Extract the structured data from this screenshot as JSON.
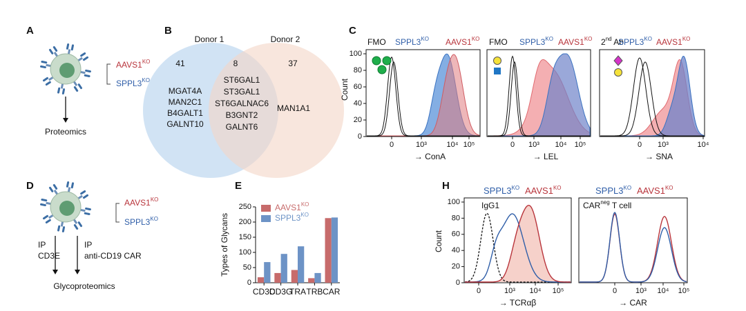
{
  "panel_a": {
    "letter": "A",
    "knockouts": [
      {
        "text": "AAVS1",
        "sup": "KO",
        "color": "#b8343b"
      },
      {
        "text": "SPPL3",
        "sup": "KO",
        "color": "#2f5ea8"
      }
    ],
    "readout": "Proteomics"
  },
  "panel_b": {
    "letter": "B",
    "donors": [
      "Donor 1",
      "Donor 2"
    ],
    "counts": [
      41,
      8,
      37
    ],
    "donor1_only": [
      "MGAT4A",
      "MAN2C1",
      "B4GALT1",
      "GALNT10"
    ],
    "shared": [
      "ST6GAL1",
      "ST3GAL1",
      "ST6GALNAC6",
      "B3GNT2",
      "GALNT6"
    ],
    "donor2_only": [
      "MAN1A1"
    ]
  },
  "panel_c": {
    "letter": "C",
    "ylabel": "Count",
    "yticks": [
      0,
      20,
      40,
      60,
      80,
      100
    ],
    "plots": [
      {
        "headers": [
          {
            "text": "FMO",
            "color": "#111"
          },
          {
            "text": "SPPL3",
            "sup": "KO",
            "color": "#2f5ea8"
          },
          {
            "text": "AAVS1",
            "sup": "KO",
            "color": "#b8343b"
          }
        ],
        "xticks": [
          "0",
          "10³",
          "10⁴",
          "10⁵"
        ],
        "xlabel": "→ ConA"
      },
      {
        "headers": [
          {
            "text": "FMO",
            "color": "#111"
          },
          {
            "text": "SPPL3",
            "sup": "KO",
            "color": "#2f5ea8"
          },
          {
            "text": "AAVS1",
            "sup": "KO",
            "color": "#b8343b"
          }
        ],
        "xticks": [
          "0",
          "10³",
          "10⁴",
          "10⁵"
        ],
        "xlabel": "→ LEL"
      },
      {
        "headers": [
          {
            "text": "2",
            "sup": "nd",
            "post": " Ab",
            "color": "#111"
          },
          {
            "text": "SPPL3",
            "sup": "KO",
            "color": "#2f5ea8"
          },
          {
            "text": "AAVS1",
            "sup": "KO",
            "color": "#b8343b"
          }
        ],
        "xticks": [
          "0",
          "10³",
          "10⁴"
        ],
        "xlabel": "→ SNA"
      }
    ]
  },
  "panel_d": {
    "letter": "D",
    "knockouts": [
      {
        "text": "AAVS1",
        "sup": "KO",
        "color": "#b8343b"
      },
      {
        "text": "SPPL3",
        "sup": "KO",
        "color": "#2f5ea8"
      }
    ],
    "ip": [
      {
        "label": "IP",
        "target": "CD3E"
      },
      {
        "label": "IP",
        "target": "anti-CD19 CAR"
      }
    ],
    "readout": "Glycoproteomics"
  },
  "chart_data": {
    "type": "bar",
    "letter": "E",
    "ylabel": "Types of Glycans",
    "categories": [
      "CD3D",
      "CD3G",
      "TRA",
      "TRB",
      "CAR"
    ],
    "series": [
      {
        "name": "AAVS1",
        "name_sup": "KO",
        "color": "#c76b6b",
        "values": [
          18,
          32,
          42,
          15,
          213
        ]
      },
      {
        "name": "SPPL3",
        "name_sup": "KO",
        "color": "#6d93c6",
        "values": [
          68,
          95,
          120,
          32,
          215
        ]
      }
    ],
    "ylim": [
      0,
      250
    ],
    "yticks": [
      0,
      50,
      100,
      150,
      200,
      250
    ],
    "legend": "upper-left"
  },
  "panel_h": {
    "letter": "H",
    "ylabel": "Count",
    "yticks": [
      0,
      20,
      40,
      60,
      80,
      100
    ],
    "plots": [
      {
        "headers": [
          {
            "text": "SPPL3",
            "sup": "KO",
            "color": "#2f5ea8"
          },
          {
            "text": "AAVS1",
            "sup": "KO",
            "color": "#b8343b"
          }
        ],
        "inset": {
          "text": "IgG1"
        },
        "xticks": [
          "0",
          "10³",
          "10⁴",
          "10⁵"
        ],
        "xlabel": "→ TCRαβ"
      },
      {
        "headers": [
          {
            "text": "SPPL3",
            "sup": "KO",
            "color": "#2f5ea8"
          },
          {
            "text": "AAVS1",
            "sup": "KO",
            "color": "#b8343b"
          }
        ],
        "inset": {
          "text": "CAR",
          "sup": "neg",
          "post": " T cell"
        },
        "xticks": [
          "0",
          "10³",
          "10⁴",
          "10⁵"
        ],
        "xlabel": "→ CAR"
      }
    ]
  }
}
